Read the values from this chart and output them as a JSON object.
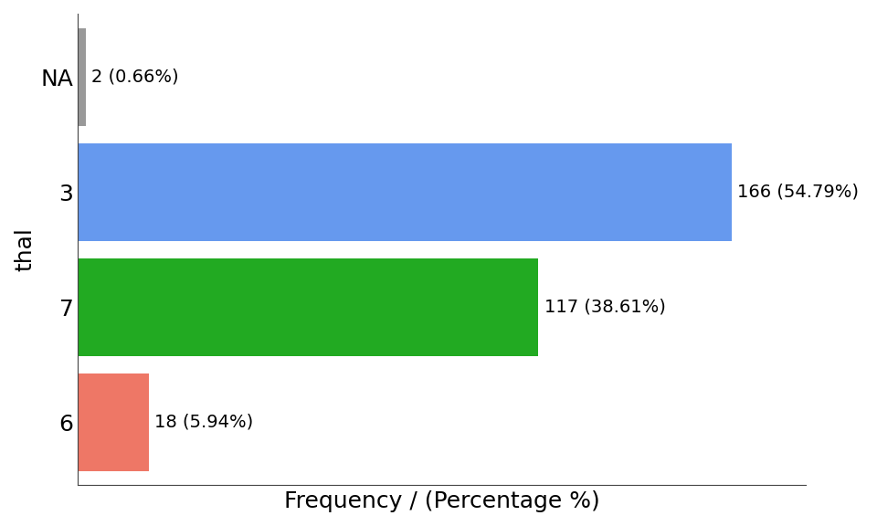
{
  "categories": [
    "NA",
    "3",
    "7",
    "6"
  ],
  "values": [
    2,
    166,
    117,
    18
  ],
  "bar_colors": [
    "#999999",
    "#6699EE",
    "#22AA22",
    "#EE7766"
  ],
  "bar_labels": [
    "2 (0.66%)",
    "166 (54.79%)",
    "117 (38.61%)",
    "18 (5.94%)"
  ],
  "xlabel": "Frequency / (Percentage %)",
  "ylabel": "thal",
  "xlim": [
    0,
    185
  ],
  "ylim": [
    -0.55,
    3.55
  ],
  "background_color": "#ffffff",
  "xlabel_fontsize": 18,
  "ylabel_fontsize": 18,
  "tick_fontsize": 18,
  "label_fontsize": 14,
  "bar_height": 0.85
}
